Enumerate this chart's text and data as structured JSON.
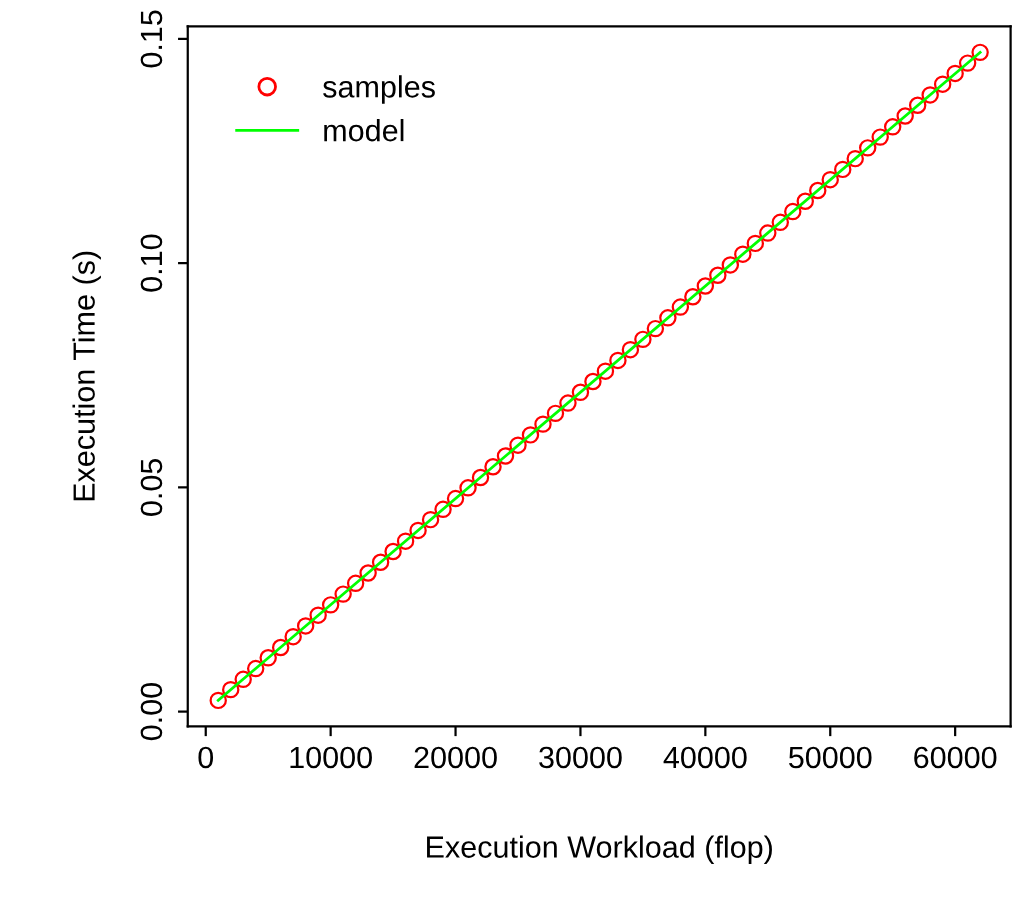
{
  "chart_data": {
    "type": "scatter",
    "xlabel": "Execution Workload (flop)",
    "ylabel": "Execution Time (s)",
    "xlim": [
      -1440,
      64440
    ],
    "ylim": [
      -0.0033,
      0.1528
    ],
    "xticks": [
      0,
      10000,
      20000,
      30000,
      40000,
      50000,
      60000
    ],
    "yticks": [
      {
        "value": 0,
        "label": "0.00"
      },
      {
        "value": 0.05,
        "label": "0.05"
      },
      {
        "value": 0.1,
        "label": "0.10"
      },
      {
        "value": 0.15,
        "label": "0.15"
      }
    ],
    "grid": false,
    "legend": "top left",
    "series": [
      {
        "name": "samples",
        "marker": "circle",
        "color": "#ff0000",
        "x": [
          1000,
          2000,
          3000,
          4000,
          5000,
          6000,
          7000,
          8000,
          9000,
          10000,
          11000,
          12000,
          13000,
          14000,
          15000,
          16000,
          17000,
          18000,
          19000,
          20000,
          21000,
          22000,
          23000,
          24000,
          25000,
          26000,
          27000,
          28000,
          29000,
          30000,
          31000,
          32000,
          33000,
          34000,
          35000,
          36000,
          37000,
          38000,
          39000,
          40000,
          41000,
          42000,
          43000,
          44000,
          45000,
          46000,
          47000,
          48000,
          49000,
          50000,
          51000,
          52000,
          53000,
          54000,
          55000,
          56000,
          57000,
          58000,
          59000,
          60000,
          61000,
          62000
        ],
        "values": [
          0.0025,
          0.0049,
          0.0072,
          0.0096,
          0.012,
          0.0143,
          0.0167,
          0.0191,
          0.0215,
          0.0238,
          0.0262,
          0.0286,
          0.0309,
          0.0333,
          0.0357,
          0.038,
          0.0404,
          0.0428,
          0.0451,
          0.0475,
          0.0499,
          0.0522,
          0.0546,
          0.057,
          0.0594,
          0.0617,
          0.0641,
          0.0665,
          0.0688,
          0.0712,
          0.0736,
          0.0759,
          0.0783,
          0.0807,
          0.083,
          0.0854,
          0.0878,
          0.0902,
          0.0925,
          0.0949,
          0.0973,
          0.0996,
          0.102,
          0.1044,
          0.1067,
          0.1091,
          0.1115,
          0.1138,
          0.1162,
          0.1186,
          0.1209,
          0.1233,
          0.1257,
          0.1281,
          0.1304,
          0.1328,
          0.1352,
          0.1375,
          0.1399,
          0.1423,
          0.1446,
          0.147
        ]
      },
      {
        "name": "model",
        "type": "line",
        "line_style": "solid",
        "color": "#00ff00",
        "x": [
          1000,
          62000
        ],
        "values": [
          0.0025,
          0.147
        ]
      }
    ]
  }
}
